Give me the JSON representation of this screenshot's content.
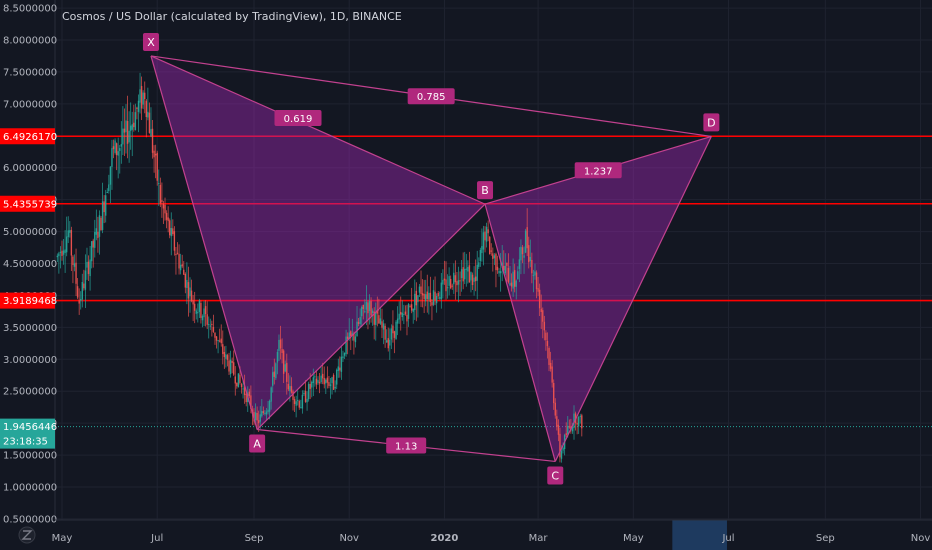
{
  "header": {
    "title": "Cosmos / US Dollar (calculated by TradingView), 1D, BINANCE"
  },
  "chart_data": {
    "type": "candlestick",
    "title": "Cosmos / US Dollar (calculated by TradingView), 1D, BINANCE",
    "ylim": [
      0.3,
      8.5
    ],
    "y_ticks": [
      {
        "value": 0.5,
        "label": "0.5000000"
      },
      {
        "value": 1.0,
        "label": "1.0000000"
      },
      {
        "value": 1.5,
        "label": "1.5000000"
      },
      {
        "value": 2.0,
        "label": "2.0000000"
      },
      {
        "value": 2.5,
        "label": "2.5000000"
      },
      {
        "value": 3.0,
        "label": "3.0000000"
      },
      {
        "value": 3.5,
        "label": "3.5000000"
      },
      {
        "value": 4.0,
        "label": "4.0000000"
      },
      {
        "value": 4.5,
        "label": "4.5000000"
      },
      {
        "value": 5.0,
        "label": "5.0000000"
      },
      {
        "value": 5.5,
        "label": "5.5000000"
      },
      {
        "value": 6.0,
        "label": "6.0000000"
      },
      {
        "value": 6.5,
        "label": "6.5000000"
      },
      {
        "value": 7.0,
        "label": "7.0000000"
      },
      {
        "value": 7.5,
        "label": "7.5000000"
      },
      {
        "value": 8.0,
        "label": "8.0000000"
      },
      {
        "value": 8.5,
        "label": "8.5000000"
      }
    ],
    "x_ticks": [
      {
        "date": "2019-05-01",
        "label": "May"
      },
      {
        "date": "2019-07-01",
        "label": "Jul"
      },
      {
        "date": "2019-09-01",
        "label": "Sep"
      },
      {
        "date": "2019-11-01",
        "label": "Nov"
      },
      {
        "date": "2020-01-01",
        "label": "2020"
      },
      {
        "date": "2020-03-01",
        "label": "Mar"
      },
      {
        "date": "2020-05-01",
        "label": "May"
      },
      {
        "date": "2020-07-01",
        "label": "Jul"
      },
      {
        "date": "2020-09-01",
        "label": "Sep"
      },
      {
        "date": "2020-11-01",
        "label": "Nov"
      }
    ],
    "price_path": [
      {
        "date": "2019-04-28",
        "price": 4.6
      },
      {
        "date": "2019-05-05",
        "price": 5.0
      },
      {
        "date": "2019-05-12",
        "price": 3.9
      },
      {
        "date": "2019-05-19",
        "price": 4.6
      },
      {
        "date": "2019-05-26",
        "price": 5.2
      },
      {
        "date": "2019-06-02",
        "price": 6.2
      },
      {
        "date": "2019-06-09",
        "price": 6.4
      },
      {
        "date": "2019-06-16",
        "price": 6.8
      },
      {
        "date": "2019-06-23",
        "price": 7.2
      },
      {
        "date": "2019-06-27",
        "price": 6.5
      },
      {
        "date": "2019-07-03",
        "price": 5.5
      },
      {
        "date": "2019-07-10",
        "price": 4.9
      },
      {
        "date": "2019-07-17",
        "price": 4.4
      },
      {
        "date": "2019-07-24",
        "price": 3.9
      },
      {
        "date": "2019-07-31",
        "price": 3.7
      },
      {
        "date": "2019-08-07",
        "price": 3.4
      },
      {
        "date": "2019-08-14",
        "price": 3.0
      },
      {
        "date": "2019-08-21",
        "price": 2.7
      },
      {
        "date": "2019-08-28",
        "price": 2.4
      },
      {
        "date": "2019-09-03",
        "price": 2.0
      },
      {
        "date": "2019-09-10",
        "price": 2.3
      },
      {
        "date": "2019-09-17",
        "price": 3.2
      },
      {
        "date": "2019-09-24",
        "price": 2.5
      },
      {
        "date": "2019-10-01",
        "price": 2.3
      },
      {
        "date": "2019-10-08",
        "price": 2.6
      },
      {
        "date": "2019-10-15",
        "price": 2.7
      },
      {
        "date": "2019-10-22",
        "price": 2.6
      },
      {
        "date": "2019-10-29",
        "price": 3.2
      },
      {
        "date": "2019-11-05",
        "price": 3.4
      },
      {
        "date": "2019-11-12",
        "price": 3.9
      },
      {
        "date": "2019-11-19",
        "price": 3.6
      },
      {
        "date": "2019-11-26",
        "price": 3.3
      },
      {
        "date": "2019-12-03",
        "price": 3.6
      },
      {
        "date": "2019-12-10",
        "price": 3.8
      },
      {
        "date": "2019-12-17",
        "price": 4.1
      },
      {
        "date": "2019-12-24",
        "price": 4.0
      },
      {
        "date": "2019-12-31",
        "price": 4.1
      },
      {
        "date": "2020-01-07",
        "price": 4.3
      },
      {
        "date": "2020-01-14",
        "price": 4.4
      },
      {
        "date": "2020-01-21",
        "price": 4.2
      },
      {
        "date": "2020-01-27",
        "price": 5.0
      },
      {
        "date": "2020-02-01",
        "price": 4.6
      },
      {
        "date": "2020-02-08",
        "price": 4.4
      },
      {
        "date": "2020-02-15",
        "price": 4.2
      },
      {
        "date": "2020-02-22",
        "price": 4.9
      },
      {
        "date": "2020-02-29",
        "price": 4.2
      },
      {
        "date": "2020-03-07",
        "price": 3.2
      },
      {
        "date": "2020-03-12",
        "price": 2.2
      },
      {
        "date": "2020-03-15",
        "price": 1.5
      },
      {
        "date": "2020-03-20",
        "price": 1.9
      },
      {
        "date": "2020-03-25",
        "price": 2.1
      },
      {
        "date": "2020-03-29",
        "price": 2.0
      }
    ],
    "harmonic_pattern": {
      "points": [
        {
          "label": "X",
          "date": "2019-06-27",
          "price": 7.75
        },
        {
          "label": "A",
          "date": "2019-09-03",
          "price": 1.9
        },
        {
          "label": "B",
          "date": "2020-01-27",
          "price": 5.43
        },
        {
          "label": "C",
          "date": "2020-03-12",
          "price": 1.4
        },
        {
          "label": "D",
          "date": "2020-06-20",
          "price": 6.49
        }
      ],
      "ratios": [
        {
          "value": "0.619",
          "anchor": "XB"
        },
        {
          "value": "0.785",
          "anchor": "XD"
        },
        {
          "value": "1.237",
          "anchor": "BD"
        },
        {
          "value": "1.13",
          "anchor": "AC"
        }
      ]
    },
    "horizontal_lines": [
      {
        "price": 6.492617,
        "label": "6.4926170",
        "color": "#ff0000"
      },
      {
        "price": 5.4355739,
        "label": "5.4355739",
        "color": "#ff0000"
      },
      {
        "price": 3.9189468,
        "label": "3.9189468",
        "color": "#ff0000"
      }
    ],
    "last_price": {
      "price": 1.9456446,
      "label": "1.9456446",
      "countdown": "23:18:35",
      "color": "#26a69a"
    },
    "time_highlight": {
      "from": "2020-05-26",
      "to": "2020-06-30"
    },
    "grid": true,
    "price_axis_side": "left"
  },
  "colors": {
    "background": "#131722",
    "grid": "#1f2330",
    "pattern_fill": "#9c27b0",
    "pattern_line": "#c2418f",
    "pattern_label": "#b0287d",
    "up": "#26a69a",
    "down": "#ef5350",
    "level_line": "#ff0000"
  },
  "footer": {
    "logo_icon": "tradingview-logo-icon"
  }
}
